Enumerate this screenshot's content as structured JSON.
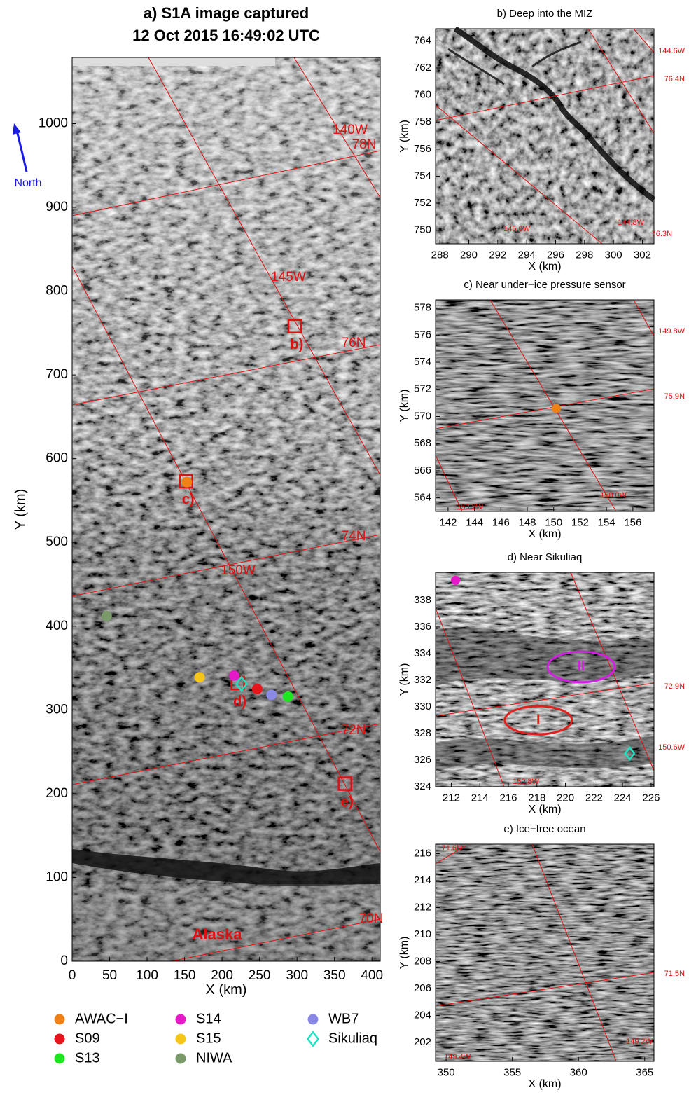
{
  "chart_data": [
    {
      "type": "scatter",
      "title": "a) S1A image captured",
      "subtitle": "12 Oct 2015 16:49:02 UTC",
      "xlabel": "X (km)",
      "ylabel": "Y (km)",
      "north_label": "North",
      "xlim": [
        0,
        411
      ],
      "ylim": [
        0,
        1079
      ],
      "xticks": [
        0,
        50,
        100,
        150,
        200,
        250,
        300,
        350,
        400
      ],
      "yticks": [
        0,
        100,
        200,
        300,
        400,
        500,
        600,
        700,
        800,
        900,
        1000
      ],
      "series": [
        {
          "name": "AWAC−I",
          "color": "#f07f14",
          "marker": "circle",
          "x": [
            153
          ],
          "y": [
            572
          ]
        },
        {
          "name": "S09",
          "color": "#e8141c",
          "marker": "circle",
          "x": [
            247
          ],
          "y": [
            325
          ]
        },
        {
          "name": "S13",
          "color": "#1ee61e",
          "marker": "circle",
          "x": [
            288
          ],
          "y": [
            316
          ]
        },
        {
          "name": "S14",
          "color": "#e619c8",
          "marker": "circle",
          "x": [
            216
          ],
          "y": [
            341
          ]
        },
        {
          "name": "S15",
          "color": "#f5c518",
          "marker": "circle",
          "x": [
            170
          ],
          "y": [
            339
          ]
        },
        {
          "name": "NIWA",
          "color": "#7a9a6a",
          "marker": "circle",
          "x": [
            46
          ],
          "y": [
            412
          ]
        },
        {
          "name": "WB7",
          "color": "#8a8ae6",
          "marker": "circle",
          "x": [
            266
          ],
          "y": [
            318
          ]
        },
        {
          "name": "Sikuliaq",
          "color": "#20e0c0",
          "marker": "diamond",
          "x": [
            226
          ],
          "y": [
            331
          ]
        }
      ],
      "boxes": [
        {
          "label": "b)",
          "x": 297,
          "y": 758
        },
        {
          "label": "c)",
          "x": 152,
          "y": 573
        },
        {
          "label": "d)",
          "x": 221,
          "y": 332
        },
        {
          "label": "e)",
          "x": 364,
          "y": 212
        }
      ],
      "map_labels": [
        "140W",
        "78N",
        "145W",
        "76N",
        "74N",
        "150W",
        "72N",
        "70N",
        "Alaska"
      ]
    },
    {
      "type": "scatter",
      "title": "b) Deep into the MIZ",
      "xlabel": "X (km)",
      "ylabel": "Y (km)",
      "xlim": [
        287.7,
        302.8
      ],
      "ylim": [
        749,
        764.9
      ],
      "xticks": [
        288,
        290,
        292,
        294,
        296,
        298,
        300,
        302
      ],
      "yticks": [
        750,
        752,
        754,
        756,
        758,
        760,
        762,
        764
      ],
      "series": [],
      "map_labels": [
        "144.6W",
        "76.4N",
        "144.8W",
        "76.3N",
        "145.0W"
      ]
    },
    {
      "type": "scatter",
      "title": "c) Near under−ice pressure sensor",
      "xlabel": "X (km)",
      "ylabel": "Y (km)",
      "xlim": [
        141.05,
        157.6
      ],
      "ylim": [
        563,
        578.6
      ],
      "xticks": [
        142,
        144,
        146,
        148,
        150,
        152,
        154,
        156
      ],
      "yticks": [
        564,
        566,
        568,
        570,
        572,
        574,
        576,
        578
      ],
      "series": [
        {
          "color": "#f07f14",
          "marker": "circle",
          "x": [
            150.2
          ],
          "y": [
            570.6
          ]
        }
      ],
      "map_labels": [
        "149.8W",
        "75.9N",
        "150.2W",
        "150.0W"
      ]
    },
    {
      "type": "scatter",
      "title": "d) Near Sikuliaq",
      "xlabel": "X (km)",
      "ylabel": "Y (km)",
      "xlim": [
        210.9,
        226.2
      ],
      "ylim": [
        324,
        340.1
      ],
      "xticks": [
        212,
        214,
        216,
        218,
        220,
        222,
        224,
        226
      ],
      "yticks": [
        324,
        326,
        328,
        330,
        332,
        334,
        336,
        338
      ],
      "series": [
        {
          "color": "#e619c8",
          "marker": "circle",
          "x": [
            212.3
          ],
          "y": [
            339.5
          ]
        },
        {
          "color": "#20e0c0",
          "marker": "diamond",
          "x": [
            224.5
          ],
          "y": [
            326.5
          ]
        }
      ],
      "ellipses": [
        {
          "label": "I",
          "color": "#e0201c",
          "x": 218.1,
          "y": 329,
          "rx": 2.35,
          "ry": 1.05
        },
        {
          "label": "II",
          "color": "#d020e0",
          "x": 221.1,
          "y": 333,
          "rx": 2.35,
          "ry": 1.15
        }
      ],
      "map_labels": [
        "72.9N",
        "150.6W",
        "150.8W"
      ]
    },
    {
      "type": "scatter",
      "title": "e) Ice−free ocean",
      "xlabel": "X (km)",
      "ylabel": "Y (km)",
      "xlim": [
        349.2,
        365.7
      ],
      "ylim": [
        200.6,
        216.7
      ],
      "xticks": [
        350,
        355,
        360,
        365
      ],
      "yticks": [
        202,
        204,
        206,
        208,
        210,
        212,
        214,
        216
      ],
      "series": [],
      "map_labels": [
        "71.6N",
        "71.5N",
        "149.4W",
        "149.2W"
      ]
    }
  ]
}
